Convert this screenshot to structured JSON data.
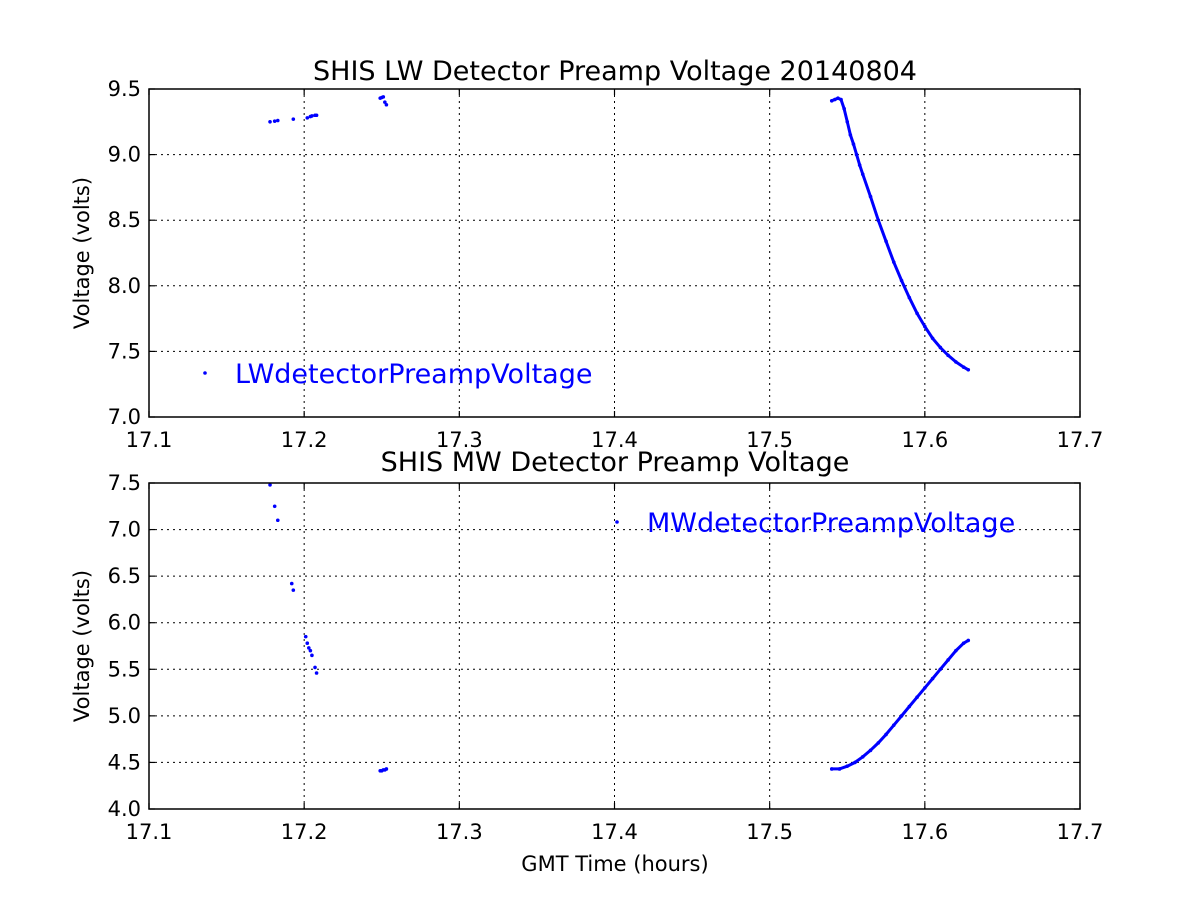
{
  "chart_data": [
    {
      "type": "scatter",
      "title": "SHIS LW Detector Preamp Voltage 20140804",
      "xlabel": "",
      "ylabel": "Voltage (volts)",
      "xlim": [
        17.1,
        17.7
      ],
      "ylim": [
        7.0,
        9.5
      ],
      "xticks": [
        "17.1",
        "17.2",
        "17.3",
        "17.4",
        "17.5",
        "17.6",
        "17.7"
      ],
      "yticks": [
        "7.0",
        "7.5",
        "8.0",
        "8.5",
        "9.0",
        "9.5"
      ],
      "grid": true,
      "legend": {
        "position": "lower-left",
        "entries": [
          "LWdetectorPreampVoltage"
        ]
      },
      "series": [
        {
          "name": "LWdetectorPreampVoltage",
          "color": "#0000ff",
          "x": [
            17.178,
            17.181,
            17.183,
            17.193,
            17.202,
            17.204,
            17.205,
            17.207,
            17.208,
            17.249,
            17.25,
            17.251,
            17.252,
            17.253,
            17.54,
            17.542,
            17.544,
            17.546,
            17.548,
            17.55,
            17.552,
            17.554,
            17.556,
            17.558,
            17.56,
            17.565,
            17.57,
            17.575,
            17.58,
            17.585,
            17.59,
            17.595,
            17.6,
            17.605,
            17.61,
            17.615,
            17.62,
            17.625,
            17.628
          ],
          "y": [
            9.25,
            9.255,
            9.26,
            9.27,
            9.28,
            9.29,
            9.295,
            9.3,
            9.3,
            9.43,
            9.435,
            9.44,
            9.4,
            9.38,
            9.41,
            9.42,
            9.43,
            9.42,
            9.35,
            9.25,
            9.15,
            9.08,
            9.0,
            8.92,
            8.85,
            8.68,
            8.5,
            8.34,
            8.18,
            8.04,
            7.91,
            7.79,
            7.69,
            7.6,
            7.53,
            7.47,
            7.42,
            7.38,
            7.36
          ]
        }
      ]
    },
    {
      "type": "scatter",
      "title": "SHIS MW Detector Preamp Voltage",
      "xlabel": "GMT Time (hours)",
      "ylabel": "Voltage (volts)",
      "xlim": [
        17.1,
        17.7
      ],
      "ylim": [
        4.0,
        7.5
      ],
      "xticks": [
        "17.1",
        "17.2",
        "17.3",
        "17.4",
        "17.5",
        "17.6",
        "17.7"
      ],
      "yticks": [
        "4.0",
        "4.5",
        "5.0",
        "5.5",
        "6.0",
        "6.5",
        "7.0",
        "7.5"
      ],
      "grid": true,
      "legend": {
        "position": "upper-right",
        "entries": [
          "MWdetectorPreampVoltage"
        ]
      },
      "series": [
        {
          "name": "MWdetectorPreampVoltage",
          "color": "#0000ff",
          "x": [
            17.178,
            17.181,
            17.183,
            17.192,
            17.193,
            17.201,
            17.202,
            17.203,
            17.204,
            17.205,
            17.207,
            17.208,
            17.249,
            17.25,
            17.251,
            17.252,
            17.253,
            17.54,
            17.545,
            17.55,
            17.555,
            17.56,
            17.565,
            17.57,
            17.575,
            17.58,
            17.585,
            17.59,
            17.595,
            17.6,
            17.605,
            17.61,
            17.615,
            17.62,
            17.625,
            17.628
          ],
          "y": [
            7.48,
            7.25,
            7.1,
            6.42,
            6.35,
            5.85,
            5.78,
            5.73,
            5.7,
            5.65,
            5.52,
            5.46,
            4.41,
            4.41,
            4.42,
            4.42,
            4.43,
            4.43,
            4.43,
            4.46,
            4.5,
            4.56,
            4.63,
            4.71,
            4.8,
            4.9,
            5.0,
            5.1,
            5.2,
            5.3,
            5.4,
            5.5,
            5.6,
            5.7,
            5.78,
            5.81
          ]
        }
      ]
    }
  ]
}
